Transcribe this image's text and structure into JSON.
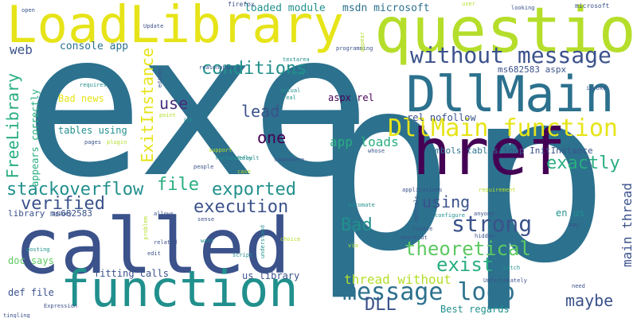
{
  "words": [
    {
      "text": "exe",
      "color": "#2c718e"
    },
    {
      "text": "p",
      "color": "#2c718e"
    },
    {
      "text": "p",
      "color": "#2c718e"
    },
    {
      "text": "LoadLibrary",
      "color": "#e6e419"
    },
    {
      "text": "question",
      "color": "#b5de2b"
    },
    {
      "text": "called",
      "color": "#3b528b"
    },
    {
      "text": "function",
      "color": "#21908d"
    },
    {
      "text": "DllMain",
      "color": "#2c718e"
    },
    {
      "text": "href",
      "color": "#440154"
    },
    {
      "text": "without message",
      "color": "#3b528b"
    },
    {
      "text": "DllMain function",
      "color": "#e6e419"
    },
    {
      "text": "conditions",
      "color": "#21908d"
    },
    {
      "text": "message loop",
      "color": "#2c718e"
    },
    {
      "text": "strong",
      "color": "#3b528b"
    },
    {
      "text": "theoretical",
      "color": "#5ec962"
    },
    {
      "text": "exist",
      "color": "#28ae80"
    },
    {
      "text": "execution",
      "color": "#3b528b"
    },
    {
      "text": "file",
      "color": "#28ae80"
    },
    {
      "text": "exported",
      "color": "#21908d"
    },
    {
      "text": "stackoverflow",
      "color": "#21908d"
    },
    {
      "text": "verified",
      "color": "#3b528b"
    },
    {
      "text": "exactly",
      "color": "#28ae80"
    },
    {
      "text": "using",
      "color": "#3b528b"
    },
    {
      "text": "Bad",
      "color": "#21908d"
    },
    {
      "text": "maybe",
      "color": "#3b528b"
    },
    {
      "text": "DLL",
      "color": "#3b528b"
    },
    {
      "text": "thread without",
      "color": "#b5de2b"
    },
    {
      "text": "one",
      "color": "#440154"
    },
    {
      "text": "lead",
      "color": "#3b528b"
    },
    {
      "text": "use",
      "color": "#472d7b"
    },
    {
      "text": "web",
      "color": "#3b528b"
    },
    {
      "text": "FreeLibrary",
      "color": "#28ae80"
    },
    {
      "text": "ExitInstance",
      "color": "#e6e419"
    },
    {
      "text": "main thread",
      "color": "#3b528b"
    },
    {
      "text": "app loads",
      "color": "#28ae80"
    },
    {
      "text": "console app",
      "color": "#2c718e"
    },
    {
      "text": "msdn microsoft",
      "color": "#2c718e"
    },
    {
      "text": "loaded module",
      "color": "#21908d"
    },
    {
      "text": "ms682583 aspx",
      "color": "#3b528b"
    },
    {
      "text": "aspx rel",
      "color": "#440154"
    },
    {
      "text": "rel nofollow",
      "color": "#3b528b"
    },
    {
      "text": "symbols tables",
      "color": "#2c718e"
    },
    {
      "text": "loop InitInstance",
      "color": "#3b528b"
    },
    {
      "text": "tables using",
      "color": "#21908d"
    },
    {
      "text": "Bad news",
      "color": "#e6e419"
    },
    {
      "text": "appears correctly",
      "color": "#28ae80"
    },
    {
      "text": "library ms682583",
      "color": "#3b528b"
    },
    {
      "text": "en us",
      "color": "#21908d"
    },
    {
      "text": "us library",
      "color": "#3b528b"
    },
    {
      "text": "fitting calls",
      "color": "#3b528b"
    },
    {
      "text": "doc says",
      "color": "#5ec962"
    },
    {
      "text": "def file",
      "color": "#3b528b"
    },
    {
      "text": "Best regards",
      "color": "#21908d"
    },
    {
      "text": "microsoft",
      "color": "#3b528b"
    },
    {
      "text": "firefox",
      "color": "#3b528b"
    },
    {
      "text": "open",
      "color": "#3b528b"
    },
    {
      "text": "tingling",
      "color": "#3b528b"
    },
    {
      "text": "looking",
      "color": "#3b528b"
    },
    {
      "text": "user",
      "color": "#b5de2b"
    },
    {
      "text": "Update",
      "color": "#3b528b"
    },
    {
      "text": "programming",
      "color": "#3b528b"
    },
    {
      "text": "textarea",
      "color": "#21908d"
    },
    {
      "text": "text",
      "color": "#21908d"
    },
    {
      "text": "reasonable",
      "color": "#3b528b"
    },
    {
      "text": "editor",
      "color": "#3b528b"
    },
    {
      "text": "requires",
      "color": "#21908d"
    },
    {
      "text": "real",
      "color": "#21908d"
    },
    {
      "text": "actual",
      "color": "#21908d"
    },
    {
      "text": "point",
      "color": "#b5de2b"
    },
    {
      "text": "ink",
      "color": "#21908d"
    },
    {
      "text": "pages",
      "color": "#3b528b"
    },
    {
      "text": "plugin",
      "color": "#b5de2b"
    },
    {
      "text": "support",
      "color": "#b5de2b"
    },
    {
      "text": "fortunately",
      "color": "#21908d"
    },
    {
      "text": "whose",
      "color": "#3b528b"
    },
    {
      "text": "people",
      "color": "#3b528b"
    },
    {
      "text": "case",
      "color": "#b5de2b"
    },
    {
      "text": "default",
      "color": "#21908d"
    },
    {
      "text": "somewhere",
      "color": "#3b528b"
    },
    {
      "text": "applications",
      "color": "#3b528b"
    },
    {
      "text": "requirement",
      "color": "#b5de2b"
    },
    {
      "text": "automate",
      "color": "#21908d"
    },
    {
      "text": "sense",
      "color": "#3b528b"
    },
    {
      "text": "allows",
      "color": "#3b528b"
    },
    {
      "text": "locate",
      "color": "#3b528b"
    },
    {
      "text": "configure",
      "color": "#21908d"
    },
    {
      "text": "anyone",
      "color": "#3b528b"
    },
    {
      "text": "controls",
      "color": "#3b528b"
    },
    {
      "text": "shortcut",
      "color": "#3b528b"
    },
    {
      "text": "hidden",
      "color": "#3b528b"
    },
    {
      "text": "spidey",
      "color": "#3b528b"
    },
    {
      "text": "related",
      "color": "#3b528b"
    },
    {
      "text": "want",
      "color": "#21908d"
    },
    {
      "text": "choice",
      "color": "#b5de2b"
    },
    {
      "text": "may",
      "color": "#3b528b"
    },
    {
      "text": "posting",
      "color": "#21908d"
    },
    {
      "text": "edit",
      "color": "#3b528b"
    },
    {
      "text": "script",
      "color": "#21908d"
    },
    {
      "text": "via",
      "color": "#b5de2b"
    },
    {
      "text": "batch",
      "color": "#21908d"
    },
    {
      "text": "Unfortunately",
      "color": "#3b528b"
    },
    {
      "text": "need",
      "color": "#3b528b"
    },
    {
      "text": "Expression",
      "color": "#3b528b"
    },
    {
      "text": "invoke",
      "color": "#3b528b"
    },
    {
      "text": "problem",
      "color": "#b5de2b"
    },
    {
      "text": "understood",
      "color": "#21908d"
    },
    {
      "text": "appear",
      "color": "#b5de2b"
    }
  ]
}
